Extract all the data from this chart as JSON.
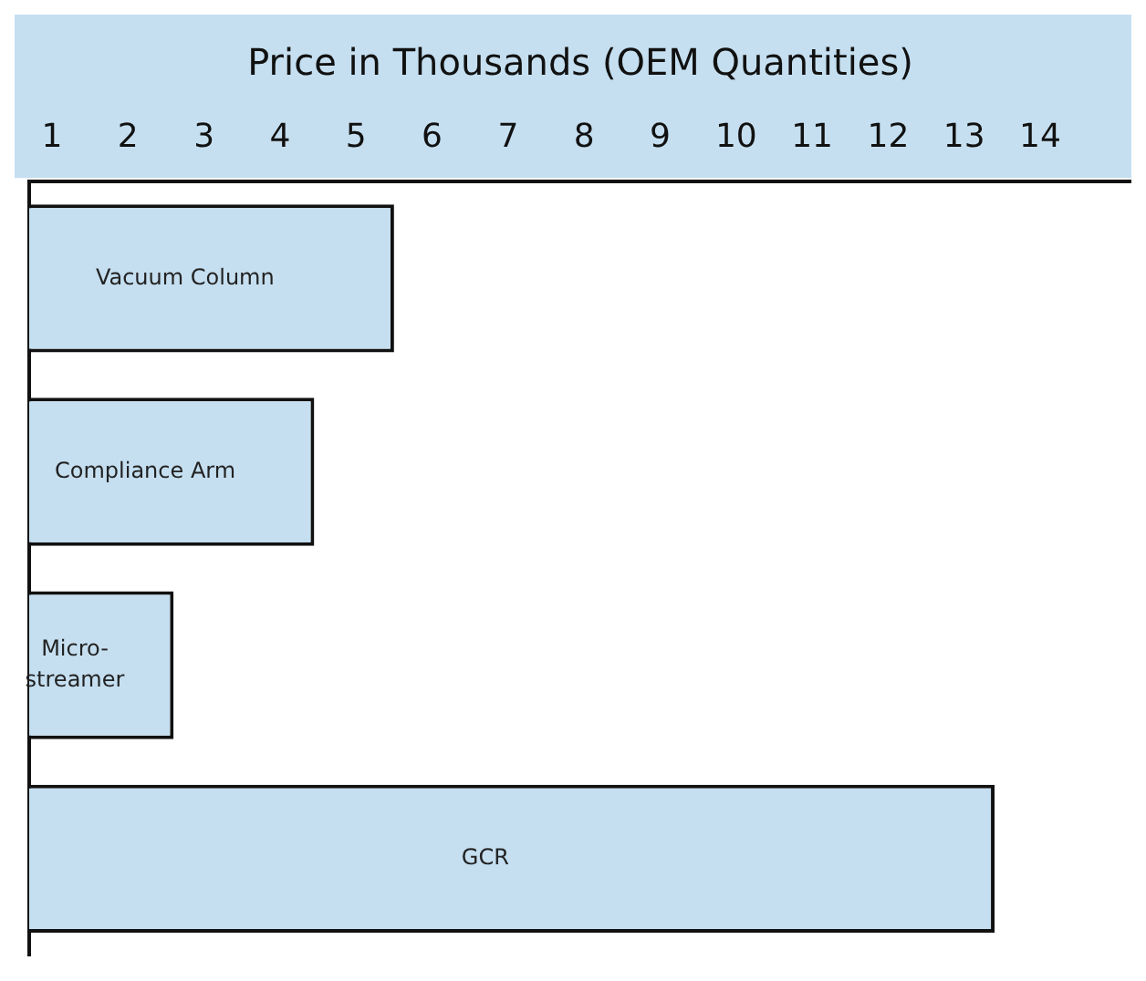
{
  "chart_data": {
    "type": "bar",
    "orientation": "horizontal",
    "xlabel": "Price in Thousands (OEM Quantities)",
    "categories": [
      "Vacuum Column",
      "Compliance Arm",
      "Micro-streamer",
      "GCR"
    ],
    "values": [
      5.5,
      4.45,
      2.6,
      13.4
    ],
    "color": "#c5dff0",
    "xlim": [
      0.7,
      15.2
    ],
    "xticks": [
      1,
      2,
      3,
      4,
      5,
      6,
      7,
      8,
      9,
      10,
      11,
      12,
      13,
      14
    ],
    "grid": false,
    "legend": false,
    "tick_labels": "x"
  }
}
